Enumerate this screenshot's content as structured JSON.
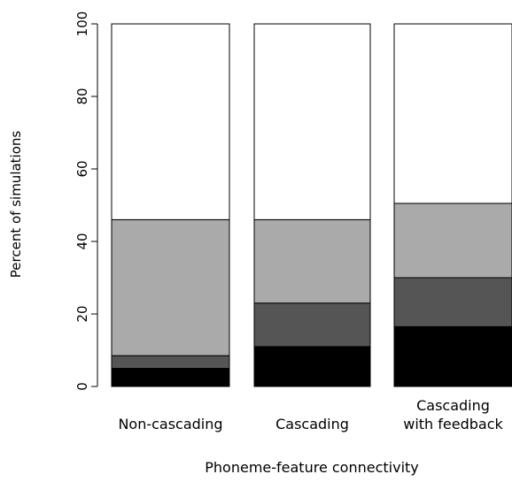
{
  "chart_data": {
    "type": "bar",
    "stacked": true,
    "title": "",
    "xlabel": "Phoneme-feature connectivity",
    "ylabel": "Percent of simulations",
    "ylim": [
      0,
      100
    ],
    "yticks": [
      0,
      20,
      40,
      60,
      80,
      100
    ],
    "grid": false,
    "legend": "none",
    "categories": [
      [
        "Non-cascading"
      ],
      [
        "Cascading"
      ],
      [
        "Cascading",
        "with feedback"
      ]
    ],
    "series": [
      {
        "color": "#000000",
        "values": [
          5,
          11,
          16.5
        ]
      },
      {
        "color": "#555555",
        "values": [
          3.5,
          12,
          13.5
        ]
      },
      {
        "color": "#aaaaaa",
        "values": [
          37.5,
          23,
          20.5
        ]
      },
      {
        "color": "#ffffff",
        "values": [
          54,
          54,
          49.5
        ]
      }
    ]
  }
}
